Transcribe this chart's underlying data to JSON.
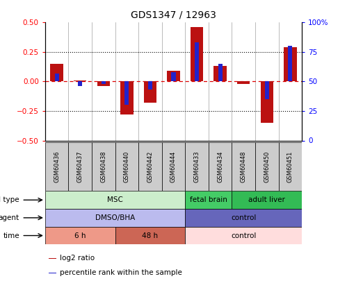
{
  "title": "GDS1347 / 12963",
  "samples": [
    "GSM60436",
    "GSM60437",
    "GSM60438",
    "GSM60440",
    "GSM60442",
    "GSM60444",
    "GSM60433",
    "GSM60434",
    "GSM60448",
    "GSM60450",
    "GSM60451"
  ],
  "log2_ratio": [
    0.15,
    0.01,
    -0.04,
    -0.28,
    -0.18,
    0.09,
    0.46,
    0.13,
    -0.02,
    -0.35,
    0.29
  ],
  "percentile_rank": [
    57,
    46,
    48,
    30,
    43,
    58,
    83,
    65,
    50,
    35,
    80
  ],
  "ylim_left": [
    -0.5,
    0.5
  ],
  "ylim_right": [
    0,
    100
  ],
  "yticks_left": [
    -0.5,
    -0.25,
    0,
    0.25,
    0.5
  ],
  "yticks_right": [
    0,
    25,
    50,
    75,
    100
  ],
  "bar_color_red": "#bb1111",
  "bar_color_blue": "#2222cc",
  "dotted_line_color": "#dd0000",
  "cell_type_labels": [
    {
      "text": "MSC",
      "start": 0,
      "end": 5,
      "color": "#cceecc"
    },
    {
      "text": "fetal brain",
      "start": 6,
      "end": 7,
      "color": "#44cc66"
    },
    {
      "text": "adult liver",
      "start": 8,
      "end": 10,
      "color": "#33bb55"
    }
  ],
  "agent_labels": [
    {
      "text": "DMSO/BHA",
      "start": 0,
      "end": 5,
      "color": "#bbbbee"
    },
    {
      "text": "control",
      "start": 6,
      "end": 10,
      "color": "#6666bb"
    }
  ],
  "time_labels": [
    {
      "text": "6 h",
      "start": 0,
      "end": 2,
      "color": "#ee9988"
    },
    {
      "text": "48 h",
      "start": 3,
      "end": 5,
      "color": "#cc6655"
    },
    {
      "text": "control",
      "start": 6,
      "end": 10,
      "color": "#ffdddd"
    }
  ],
  "row_labels": [
    "cell type",
    "agent",
    "time"
  ],
  "legend_red": "log2 ratio",
  "legend_blue": "percentile rank within the sample",
  "sample_bg": "#cccccc",
  "red_bar_width": 0.55,
  "blue_bar_width": 0.18
}
